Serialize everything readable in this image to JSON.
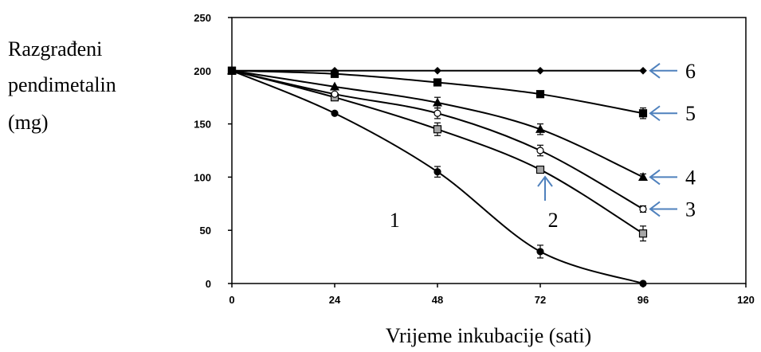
{
  "chart_data": {
    "type": "line",
    "ylabel": [
      "Razgrađeni",
      "pendimetalin",
      "(mg)"
    ],
    "xlabel": "Vrijeme inkubacije (sati)",
    "xlim": [
      0,
      120
    ],
    "ylim": [
      0,
      250
    ],
    "x_ticks": [
      0,
      24,
      48,
      72,
      96,
      120
    ],
    "y_ticks": [
      0,
      50,
      100,
      150,
      200,
      250
    ],
    "grid": false,
    "accent_arrow_color": "#4f81bd",
    "series": [
      {
        "name": "1",
        "marker": "circle",
        "fill": "#000000",
        "x": [
          0,
          24,
          48,
          72,
          96
        ],
        "y": [
          200,
          160,
          105,
          30,
          0
        ],
        "err": [
          0,
          0,
          5,
          6,
          0
        ]
      },
      {
        "name": "2",
        "marker": "square",
        "fill": "#a6a6a6",
        "x": [
          0,
          24,
          48,
          72,
          96
        ],
        "y": [
          200,
          175,
          145,
          107,
          47
        ],
        "err": [
          0,
          0,
          6,
          0,
          7
        ]
      },
      {
        "name": "3",
        "marker": "circle",
        "fill": "#ffffff",
        "x": [
          0,
          24,
          48,
          72,
          96
        ],
        "y": [
          200,
          178,
          160,
          125,
          70
        ],
        "err": [
          0,
          0,
          5,
          5,
          3
        ]
      },
      {
        "name": "4",
        "marker": "triangle",
        "fill": "#000000",
        "x": [
          0,
          24,
          48,
          72,
          96
        ],
        "y": [
          200,
          185,
          170,
          145,
          100
        ],
        "err": [
          0,
          0,
          5,
          5,
          3
        ]
      },
      {
        "name": "5",
        "marker": "square",
        "fill": "#000000",
        "x": [
          0,
          24,
          48,
          72,
          96
        ],
        "y": [
          200,
          197,
          189,
          178,
          160
        ],
        "err": [
          0,
          0,
          2,
          2,
          5
        ]
      },
      {
        "name": "6",
        "marker": "diamond",
        "fill": "#000000",
        "x": [
          0,
          24,
          48,
          72,
          96
        ],
        "y": [
          200,
          200,
          200,
          200,
          200
        ],
        "err": [
          0,
          0,
          0,
          0,
          0
        ]
      }
    ],
    "annotations": [
      {
        "text": "1",
        "x": 38,
        "y": 62,
        "arrow": false
      },
      {
        "text": "2",
        "x": 75,
        "y": 62,
        "arrow": "up",
        "target_x": 72,
        "target_y": 107
      },
      {
        "text": "3",
        "x": 96,
        "y": 70,
        "arrow": "left"
      },
      {
        "text": "4",
        "x": 96,
        "y": 100,
        "arrow": "left"
      },
      {
        "text": "5",
        "x": 96,
        "y": 160,
        "arrow": "left"
      },
      {
        "text": "6",
        "x": 96,
        "y": 200,
        "arrow": "left"
      }
    ]
  }
}
